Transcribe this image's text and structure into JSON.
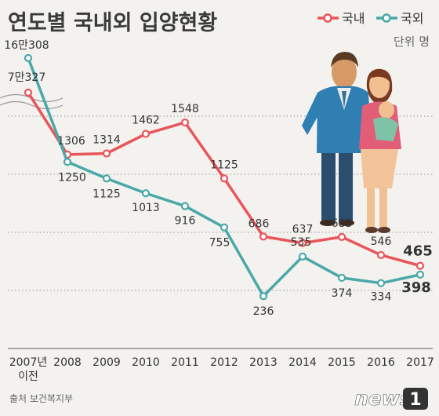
{
  "title": "연도별 국내외 입양현황",
  "unit": "단위 명",
  "source": "출처 보건복지부",
  "logo": {
    "text": "news",
    "mark": "1"
  },
  "colors": {
    "domestic": "#e8555a",
    "international": "#4aa8a8"
  },
  "chart_data": {
    "type": "line",
    "title": "연도별 국내외 입양현황",
    "unit": "단위 명",
    "categories": [
      "2007년 이전",
      "2008",
      "2009",
      "2010",
      "2011",
      "2012",
      "2013",
      "2014",
      "2015",
      "2016",
      "2017"
    ],
    "series": [
      {
        "name": "국내",
        "values": [
          70327,
          1306,
          1314,
          1462,
          1548,
          1125,
          686,
          637,
          683,
          546,
          465
        ],
        "labels": [
          "7만327",
          "1306",
          "1314",
          "1462",
          "1548",
          "1125",
          "686",
          "637",
          "683",
          "546",
          "465"
        ]
      },
      {
        "name": "국외",
        "values": [
          160308,
          1250,
          1125,
          1013,
          916,
          755,
          236,
          535,
          374,
          334,
          398
        ],
        "labels": [
          "16만308",
          "1250",
          "1125",
          "1013",
          "916",
          "755",
          "236",
          "535",
          "374",
          "334",
          "398"
        ]
      }
    ],
    "axis_break": true,
    "legend": "top-right",
    "grid": true
  }
}
